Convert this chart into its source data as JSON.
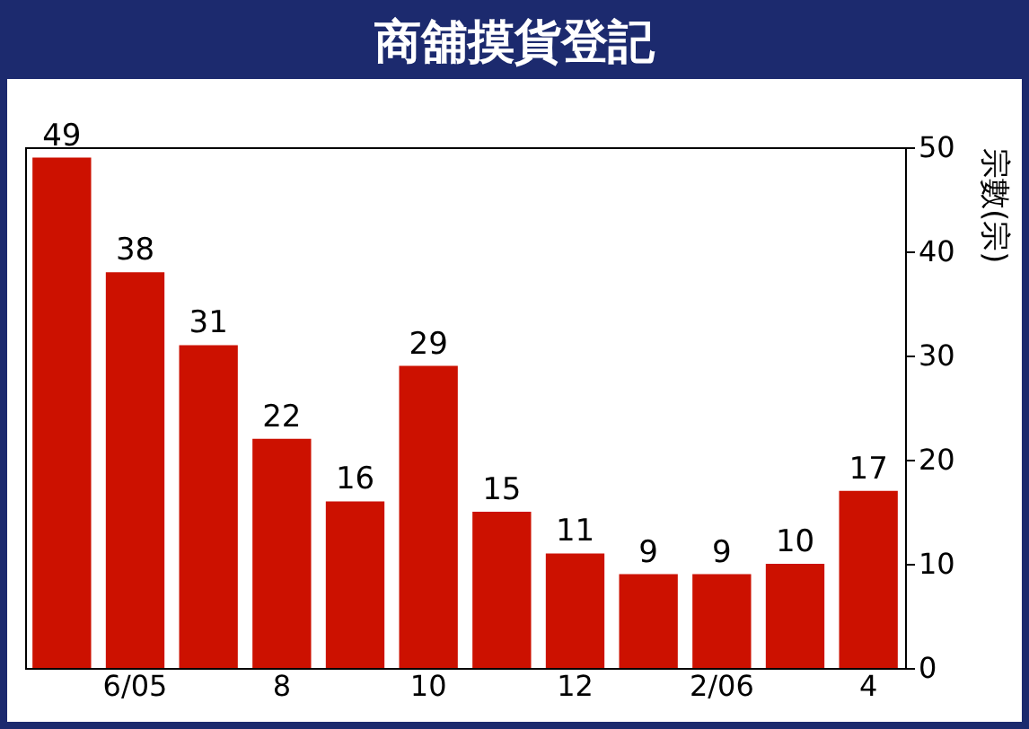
{
  "chart_data": {
    "type": "bar",
    "title": "商舖摸貨登記",
    "ylabel": "宗數(宗)",
    "categories": [
      null,
      "6/05",
      null,
      "8",
      null,
      "10",
      null,
      "12",
      null,
      "2/06",
      null,
      "4"
    ],
    "values": [
      49,
      38,
      31,
      22,
      16,
      29,
      15,
      11,
      9,
      9,
      10,
      17
    ],
    "color": "#cc1100",
    "ylim": [
      0,
      50
    ],
    "yticks": [
      0,
      10,
      20,
      30,
      40,
      50
    ],
    "grid": false,
    "data_labels": true
  }
}
